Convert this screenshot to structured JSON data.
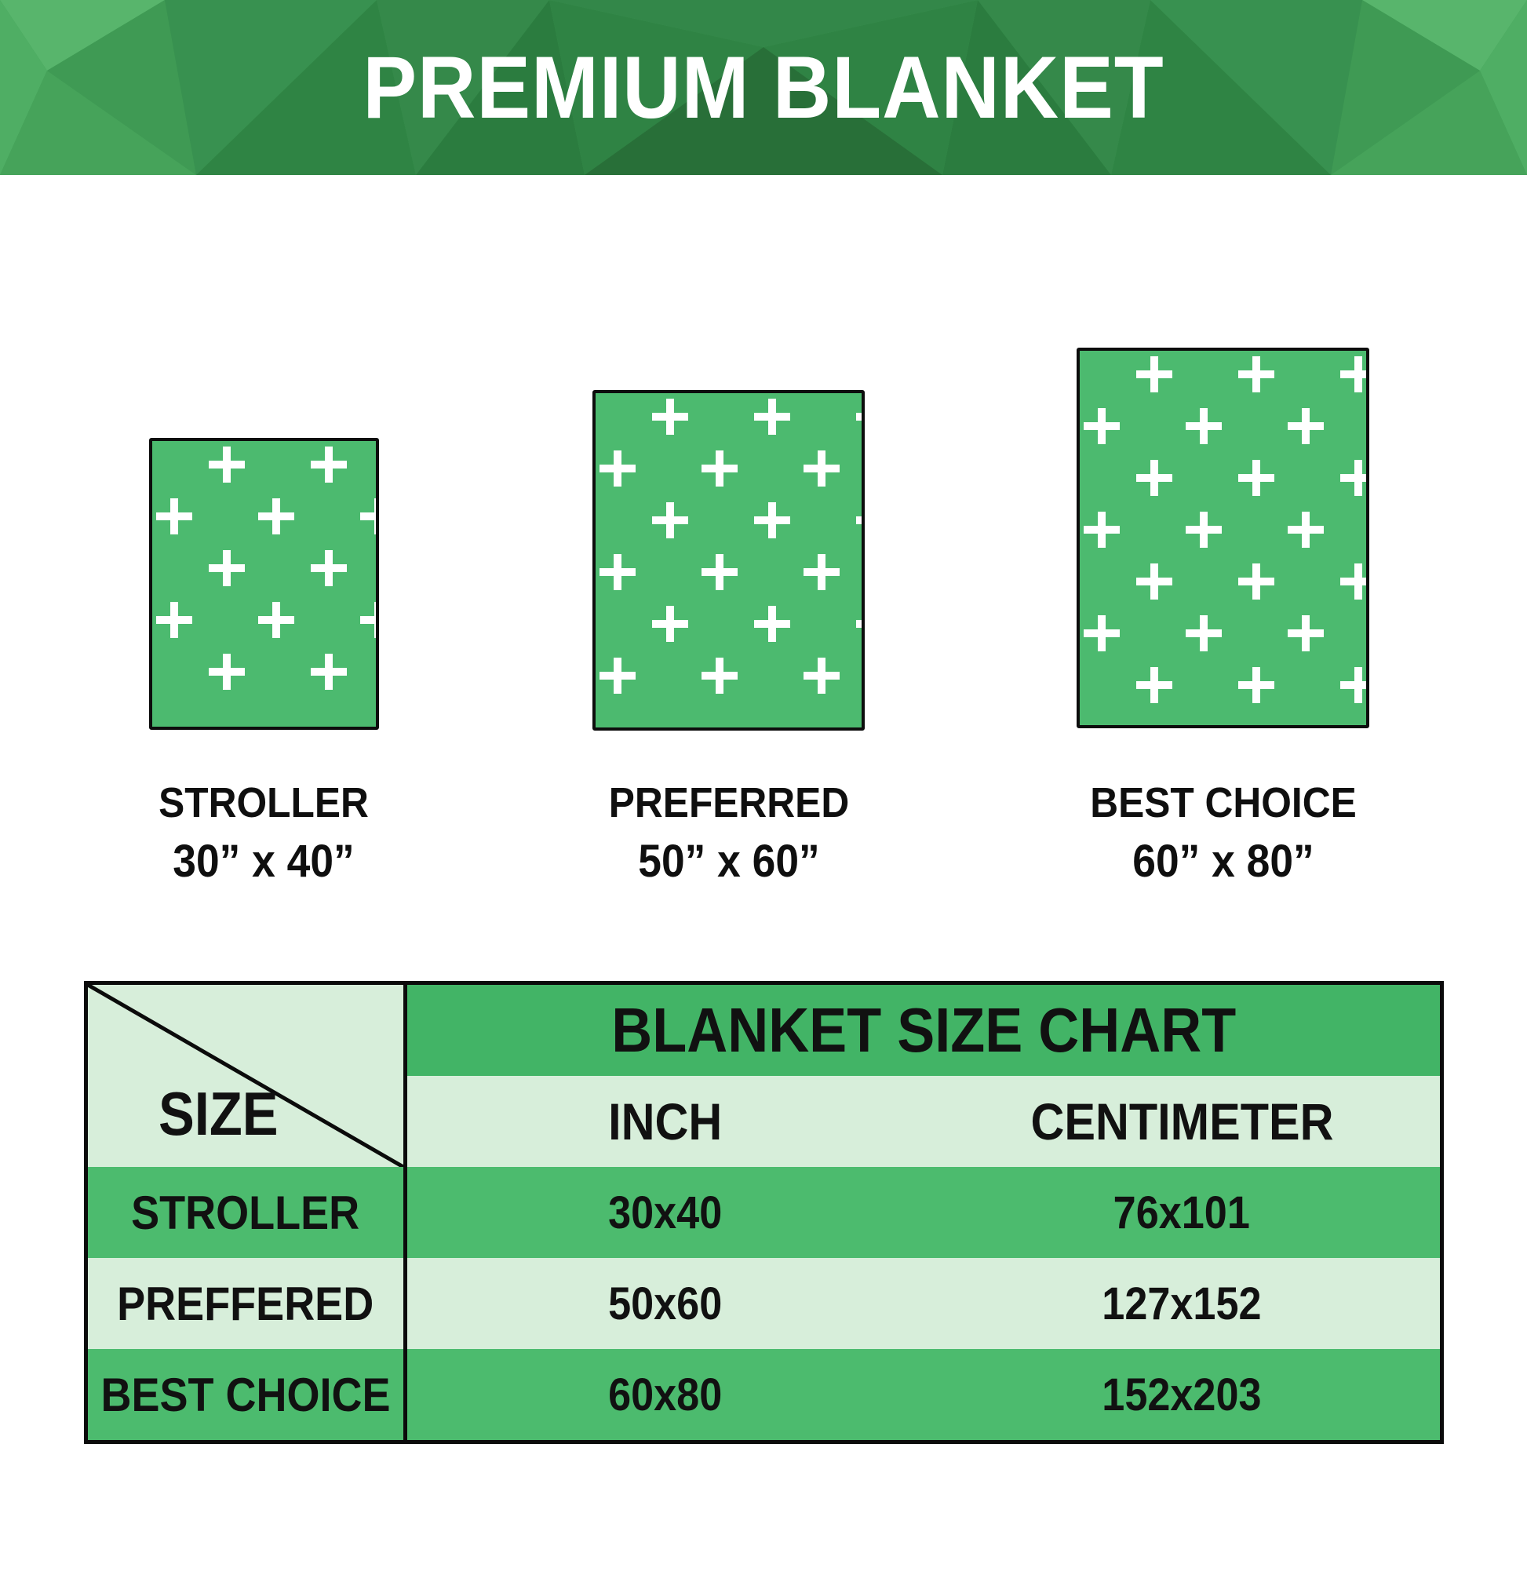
{
  "header": {
    "title": "PREMIUM BLANKET"
  },
  "products": [
    {
      "name": "STROLLER",
      "size": "30” x 40”"
    },
    {
      "name": "PREFERRED",
      "size": "50” x 60”"
    },
    {
      "name": "BEST CHOICE",
      "size": "60” x 80”"
    }
  ],
  "size_chart": {
    "title": "BLANKET SIZE CHART",
    "corner_label": "SIZE",
    "columns": [
      "INCH",
      "CENTIMETER"
    ],
    "rows": [
      {
        "label": "STROLLER",
        "inch": "30x40",
        "centimeter": "76x101"
      },
      {
        "label": "PREFFERED",
        "inch": "50x60",
        "centimeter": "127x152"
      },
      {
        "label": "BEST CHOICE",
        "inch": "60x80",
        "centimeter": "152x203"
      }
    ]
  },
  "chart_data": {
    "type": "table",
    "title": "BLANKET SIZE CHART",
    "columns": [
      "SIZE",
      "INCH",
      "CENTIMETER"
    ],
    "rows": [
      [
        "STROLLER",
        "30x40",
        "76x101"
      ],
      [
        "PREFFERED",
        "50x60",
        "127x152"
      ],
      [
        "BEST CHOICE",
        "60x80",
        "152x203"
      ]
    ],
    "units": {
      "INCH": "inches",
      "CENTIMETER": "centimeters"
    }
  },
  "colors": {
    "banner_green_dark": "#286f38",
    "banner_green": "#3f9b54",
    "banner_green_light": "#58b56c",
    "blanket_green": "#4cba6f",
    "table_header_green": "#42b466",
    "table_row_green": "#4cbb6e",
    "table_row_mint": "#d7eeda",
    "border_black": "#0b0b0b",
    "text_dark": "#111111",
    "title_white": "#ffffff"
  }
}
